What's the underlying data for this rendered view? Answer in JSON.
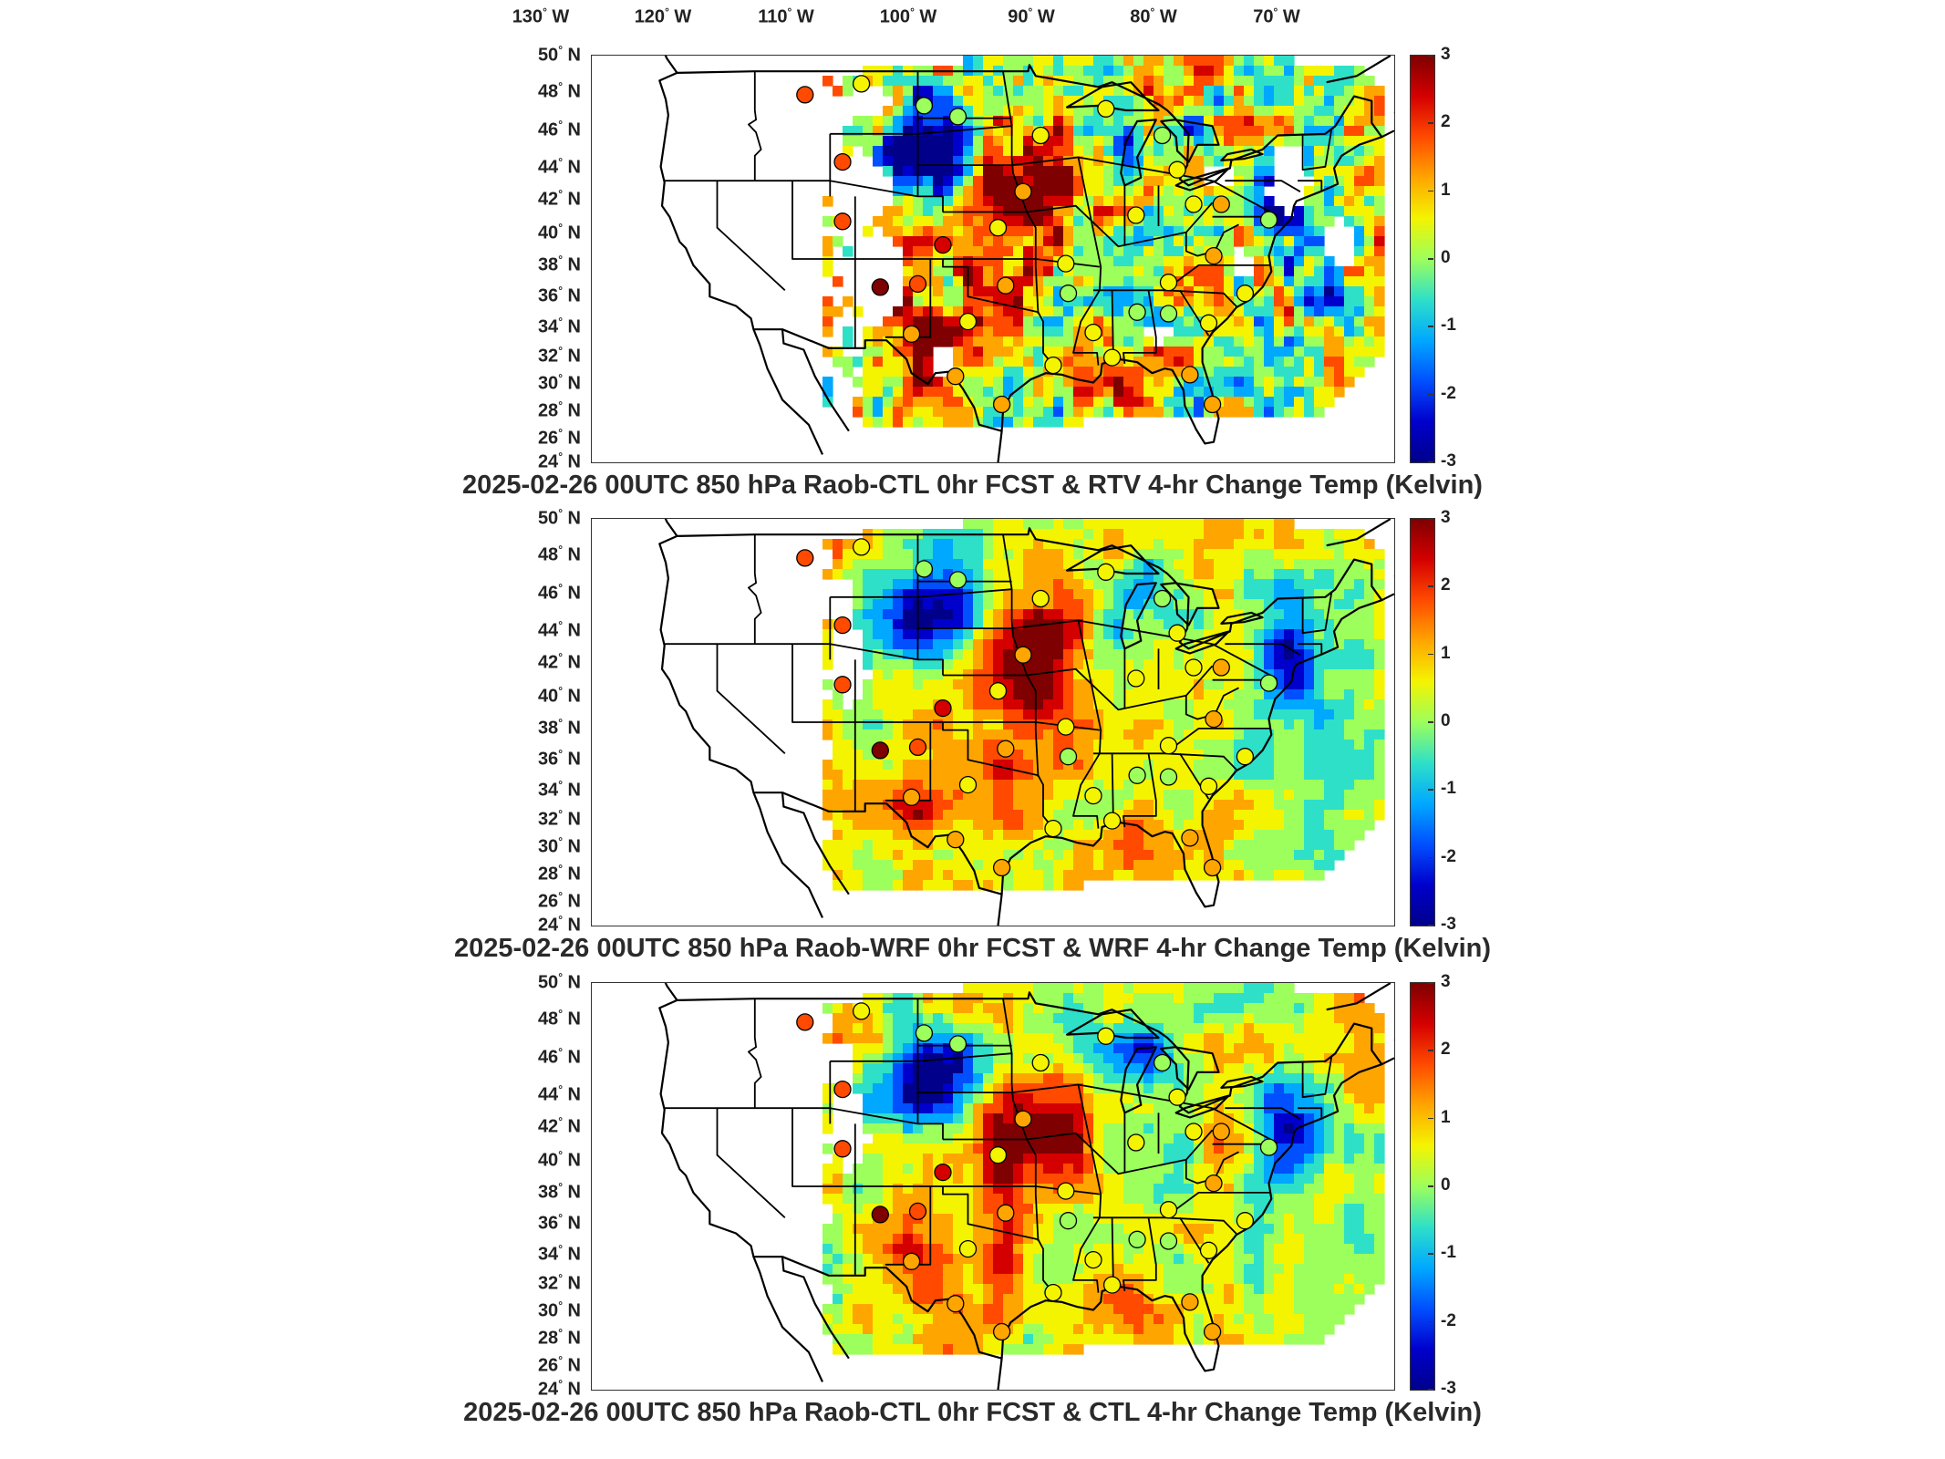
{
  "top_axis": {
    "lon_labels": [
      "130",
      "120",
      "110",
      "100",
      "90",
      "80",
      "70"
    ],
    "lon_unit": "W"
  },
  "lat_axis": {
    "lat_labels": [
      "50",
      "48",
      "46",
      "44",
      "42",
      "40",
      "38",
      "36",
      "34",
      "32",
      "30",
      "28",
      "26",
      "24"
    ],
    "lat_unit": "N"
  },
  "colorbar": {
    "tick_labels": [
      "3",
      "2",
      "1",
      "0",
      "-1",
      "-2",
      "-3"
    ],
    "colormap": [
      "#7f0000",
      "#d40000",
      "#ff4a00",
      "#ffa500",
      "#f4f400",
      "#9cff5c",
      "#2ee0c8",
      "#00a8ff",
      "#0050ff",
      "#0000cc",
      "#00008b"
    ]
  },
  "panels": [
    {
      "title": "2025-02-26 00UTC 850 hPa Raob-CTL 0hr FCST & RTV 4-hr Change Temp (Kelvin)",
      "variant": "RTV"
    },
    {
      "title": "2025-02-26 00UTC 850 hPa Raob-WRF 0hr FCST & WRF 4-hr Change Temp (Kelvin)",
      "variant": "WRF"
    },
    {
      "title": "2025-02-26 00UTC 850 hPa Raob-CTL 0hr FCST & CTL 4-hr Change Temp (Kelvin)",
      "variant": "CTL"
    }
  ],
  "map_data": {
    "lon_range": [
      -130,
      -66
    ],
    "lat_range": [
      24,
      50
    ],
    "raob_stations": [
      {
        "lon": -113.0,
        "lat": 47.5,
        "value": 1.8
      },
      {
        "lon": -108.5,
        "lat": 48.2,
        "value": 0.5
      },
      {
        "lon": -103.5,
        "lat": 46.8,
        "value": 0.1
      },
      {
        "lon": -100.8,
        "lat": 46.1,
        "value": 0.3
      },
      {
        "lon": -110.0,
        "lat": 43.2,
        "value": 1.8
      },
      {
        "lon": -110.0,
        "lat": 39.4,
        "value": 1.8
      },
      {
        "lon": -102.0,
        "lat": 37.9,
        "value": 2.6
      },
      {
        "lon": -107.0,
        "lat": 35.2,
        "value": 3.0
      },
      {
        "lon": -104.0,
        "lat": 35.4,
        "value": 2.0
      },
      {
        "lon": -97.0,
        "lat": 35.3,
        "value": 1.2
      },
      {
        "lon": -104.5,
        "lat": 32.2,
        "value": 1.5
      },
      {
        "lon": -100.0,
        "lat": 33.0,
        "value": 0.5
      },
      {
        "lon": -101.0,
        "lat": 29.5,
        "value": 1.0
      },
      {
        "lon": -97.3,
        "lat": 27.7,
        "value": 1.0
      },
      {
        "lon": -94.2,
        "lat": 44.9,
        "value": 0.8
      },
      {
        "lon": -95.6,
        "lat": 41.3,
        "value": 1.4
      },
      {
        "lon": -97.6,
        "lat": 39.0,
        "value": 0.7
      },
      {
        "lon": -92.2,
        "lat": 36.7,
        "value": 0.5
      },
      {
        "lon": -92.0,
        "lat": 34.8,
        "value": 0.3
      },
      {
        "lon": -90.0,
        "lat": 32.3,
        "value": 0.6
      },
      {
        "lon": -93.2,
        "lat": 30.2,
        "value": 0.5
      },
      {
        "lon": -88.5,
        "lat": 30.7,
        "value": 0.8
      },
      {
        "lon": -84.0,
        "lat": 35.5,
        "value": 0.7
      },
      {
        "lon": -86.5,
        "lat": 33.6,
        "value": -0.1
      },
      {
        "lon": -84.0,
        "lat": 33.5,
        "value": 0.0
      },
      {
        "lon": -80.8,
        "lat": 32.9,
        "value": 0.9
      },
      {
        "lon": -77.9,
        "lat": 34.8,
        "value": 0.8
      },
      {
        "lon": -80.4,
        "lat": 37.2,
        "value": 1.0
      },
      {
        "lon": -86.6,
        "lat": 39.8,
        "value": 0.6
      },
      {
        "lon": -82.0,
        "lat": 40.5,
        "value": 0.6
      },
      {
        "lon": -79.8,
        "lat": 40.5,
        "value": 1.3
      },
      {
        "lon": -84.5,
        "lat": 44.9,
        "value": 0.1
      },
      {
        "lon": -83.3,
        "lat": 42.7,
        "value": 0.4
      },
      {
        "lon": -89.0,
        "lat": 46.6,
        "value": 0.7
      },
      {
        "lon": -82.3,
        "lat": 29.6,
        "value": 1.1
      },
      {
        "lon": -80.5,
        "lat": 27.7,
        "value": 1.2
      },
      {
        "lon": -76.0,
        "lat": 39.5,
        "value": 0.3
      }
    ]
  }
}
